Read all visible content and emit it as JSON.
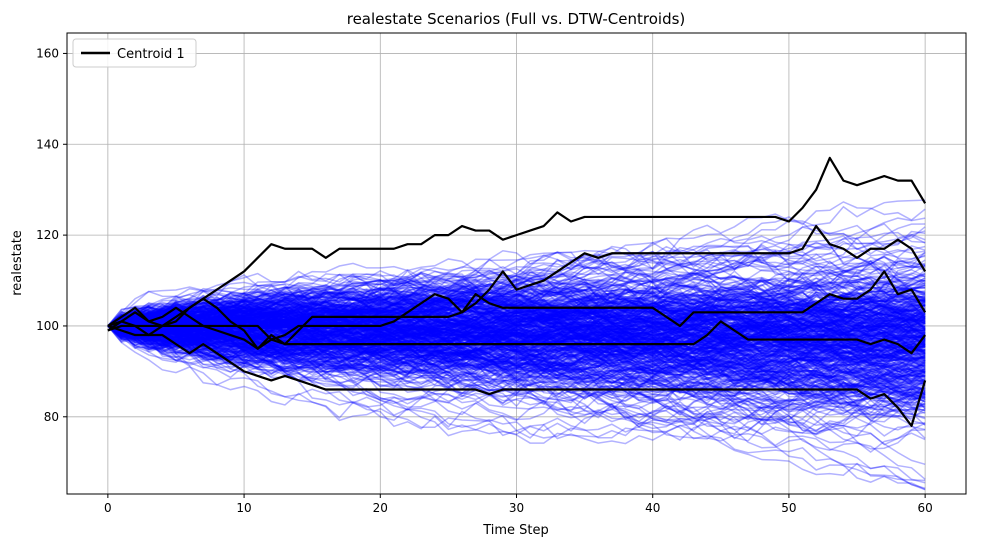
{
  "chart_data": {
    "type": "line",
    "title": "realestate Scenarios (Full vs. DTW-Centroids)",
    "xlabel": "Time Step",
    "ylabel": "realestate",
    "xlim": [
      -3,
      63
    ],
    "ylim": [
      63,
      164.5
    ],
    "xticks": [
      0,
      10,
      20,
      30,
      40,
      50,
      60
    ],
    "yticks": [
      80,
      100,
      120,
      140,
      160
    ],
    "grid": true,
    "legend": {
      "placement": "top-left",
      "entries": [
        "Centroid 1"
      ]
    },
    "colors": {
      "scenario": "#0000ff",
      "centroid": "#000000",
      "grid": "#b0b0b0"
    },
    "scenarios": {
      "description_count": 500,
      "start_value": 100,
      "steps": 60,
      "color": "#0000ff",
      "opacity": 0.3
    },
    "centroids": [
      {
        "name": "Centroid 1",
        "x": [
          0,
          1,
          2,
          3,
          4,
          5,
          6,
          7,
          8,
          9,
          10,
          11,
          12,
          13,
          14,
          15,
          16,
          17,
          18,
          19,
          20,
          21,
          22,
          23,
          24,
          25,
          26,
          27,
          28,
          29,
          30,
          31,
          32,
          33,
          34,
          35,
          36,
          37,
          38,
          39,
          40,
          41,
          42,
          43,
          44,
          45,
          46,
          47,
          48,
          49,
          50,
          51,
          52,
          53,
          54,
          55,
          56,
          57,
          58,
          59,
          60
        ],
        "values": [
          100,
          101,
          103,
          101,
          100,
          101,
          104,
          106,
          108,
          110,
          112,
          115,
          118,
          117,
          117,
          117,
          115,
          117,
          117,
          117,
          117,
          117,
          118,
          118,
          120,
          120,
          122,
          121,
          121,
          119,
          120,
          121,
          122,
          125,
          123,
          124,
          124,
          124,
          124,
          124,
          124,
          124,
          124,
          124,
          124,
          124,
          124,
          124,
          124,
          124,
          123,
          126,
          130,
          137,
          132,
          131,
          132,
          133,
          132,
          132,
          127
        ]
      },
      {
        "name": "",
        "x": [
          0,
          1,
          2,
          3,
          4,
          5,
          6,
          7,
          8,
          9,
          10,
          11,
          12,
          13,
          14,
          15,
          16,
          17,
          18,
          19,
          20,
          21,
          22,
          23,
          24,
          25,
          26,
          27,
          28,
          29,
          30,
          31,
          32,
          33,
          34,
          35,
          36,
          37,
          38,
          39,
          40,
          41,
          42,
          43,
          44,
          45,
          46,
          47,
          48,
          49,
          50,
          51,
          52,
          53,
          54,
          55,
          56,
          57,
          58,
          59,
          60
        ],
        "values": [
          99,
          101,
          100,
          98,
          100,
          102,
          104,
          106,
          104,
          101,
          99,
          95,
          97,
          96,
          99,
          102,
          102,
          102,
          102,
          102,
          102,
          102,
          102,
          102,
          102,
          102,
          103,
          105,
          108,
          112,
          108,
          109,
          110,
          112,
          114,
          116,
          115,
          116,
          116,
          116,
          116,
          116,
          116,
          116,
          116,
          116,
          116,
          116,
          116,
          116,
          116,
          117,
          122,
          118,
          117,
          115,
          117,
          117,
          119,
          117,
          112
        ]
      },
      {
        "name": "",
        "x": [
          0,
          1,
          2,
          3,
          4,
          5,
          6,
          7,
          8,
          9,
          10,
          11,
          12,
          13,
          14,
          15,
          16,
          17,
          18,
          19,
          20,
          21,
          22,
          23,
          24,
          25,
          26,
          27,
          28,
          29,
          30,
          31,
          32,
          33,
          34,
          35,
          36,
          37,
          38,
          39,
          40,
          41,
          42,
          43,
          44,
          45,
          46,
          47,
          48,
          49,
          50,
          51,
          52,
          53,
          54,
          55,
          56,
          57,
          58,
          59,
          60
        ],
        "values": [
          100,
          102,
          104,
          101,
          102,
          104,
          102,
          100,
          100,
          100,
          100,
          100,
          97,
          98,
          100,
          100,
          100,
          100,
          100,
          100,
          100,
          101,
          103,
          105,
          107,
          106,
          103,
          107,
          105,
          104,
          104,
          104,
          104,
          104,
          104,
          104,
          104,
          104,
          104,
          104,
          104,
          102,
          100,
          103,
          103,
          103,
          103,
          103,
          103,
          103,
          103,
          103,
          105,
          107,
          106,
          106,
          108,
          112,
          107,
          108,
          103
        ]
      },
      {
        "name": "",
        "x": [
          0,
          1,
          2,
          3,
          4,
          5,
          6,
          7,
          8,
          9,
          10,
          11,
          12,
          13,
          14,
          15,
          16,
          17,
          18,
          19,
          20,
          21,
          22,
          23,
          24,
          25,
          26,
          27,
          28,
          29,
          30,
          31,
          32,
          33,
          34,
          35,
          36,
          37,
          38,
          39,
          40,
          41,
          42,
          43,
          44,
          45,
          46,
          47,
          48,
          49,
          50,
          51,
          52,
          53,
          54,
          55,
          56,
          57,
          58,
          59,
          60
        ],
        "values": [
          99,
          100,
          100,
          100,
          100,
          100,
          100,
          100,
          99,
          98,
          97,
          95,
          98,
          96,
          96,
          96,
          96,
          96,
          96,
          96,
          96,
          96,
          96,
          96,
          96,
          96,
          96,
          96,
          96,
          96,
          96,
          96,
          96,
          96,
          96,
          96,
          96,
          96,
          96,
          96,
          96,
          96,
          96,
          96,
          98,
          101,
          99,
          97,
          97,
          97,
          97,
          97,
          97,
          97,
          97,
          97,
          96,
          97,
          96,
          94,
          98
        ]
      },
      {
        "name": "",
        "x": [
          0,
          1,
          2,
          3,
          4,
          5,
          6,
          7,
          8,
          9,
          10,
          11,
          12,
          13,
          14,
          15,
          16,
          17,
          18,
          19,
          20,
          21,
          22,
          23,
          24,
          25,
          26,
          27,
          28,
          29,
          30,
          31,
          32,
          33,
          34,
          35,
          36,
          37,
          38,
          39,
          40,
          41,
          42,
          43,
          44,
          45,
          46,
          47,
          48,
          49,
          50,
          51,
          52,
          53,
          54,
          55,
          56,
          57,
          58,
          59,
          60
        ],
        "values": [
          100,
          99,
          98,
          98,
          98,
          96,
          94,
          96,
          94,
          92,
          90,
          89,
          88,
          89,
          88,
          87,
          86,
          86,
          86,
          86,
          86,
          86,
          86,
          86,
          86,
          86,
          86,
          86,
          85,
          86,
          86,
          86,
          86,
          86,
          86,
          86,
          86,
          86,
          86,
          86,
          86,
          86,
          86,
          86,
          86,
          86,
          86,
          86,
          86,
          86,
          86,
          86,
          86,
          86,
          86,
          86,
          84,
          85,
          82,
          78,
          88
        ]
      }
    ]
  }
}
